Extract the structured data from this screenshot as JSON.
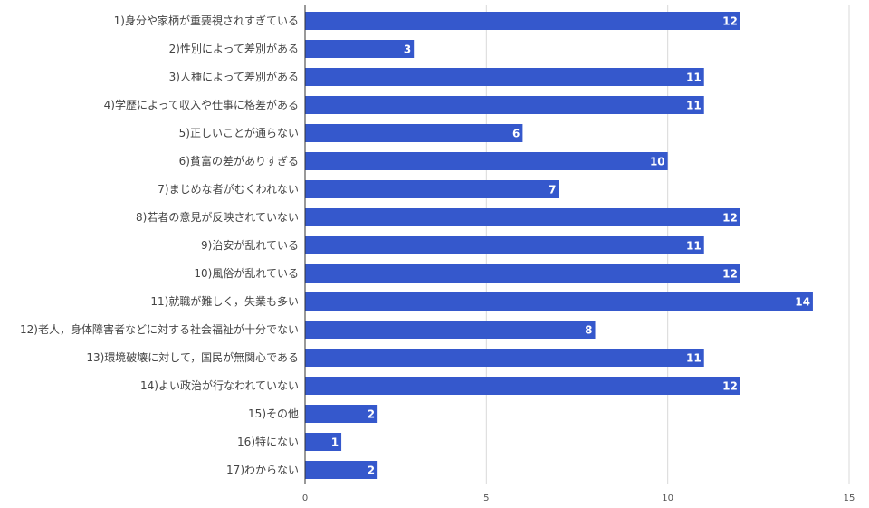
{
  "chart_data": {
    "type": "bar",
    "orientation": "horizontal",
    "categories": [
      "1)身分や家柄が重要視されすぎている",
      "2)性別によって差別がある",
      "3)人種によって差別がある",
      "4)学歴によって収入や仕事に格差がある",
      "5)正しいことが通らない",
      "6)貧富の差がありすぎる",
      "7)まじめな者がむくわれない",
      "8)若者の意見が反映されていない",
      "9)治安が乱れている",
      "10)風俗が乱れている",
      "11)就職が難しく，失業も多い",
      "12)老人，身体障害者などに対する社会福祉が十分でない",
      "13)環境破壊に対して，国民が無関心である",
      "14)よい政治が行なわれていない",
      "15)その他",
      "16)特にない",
      "17)わからない"
    ],
    "values": [
      12,
      3,
      11,
      11,
      6,
      10,
      7,
      12,
      11,
      12,
      14,
      8,
      11,
      12,
      2,
      1,
      2
    ],
    "value_labels": [
      "12",
      "3",
      "11",
      "11",
      "6",
      "10",
      "7",
      "12",
      "11",
      "12",
      "14",
      "8",
      "11",
      "12",
      "2",
      "1",
      "2"
    ],
    "xlim": [
      0,
      15
    ],
    "xticks": [
      "0",
      "5",
      "10",
      "15"
    ],
    "grid": true,
    "bar_color": "#3558cc",
    "title": "",
    "xlabel": "",
    "ylabel": ""
  }
}
